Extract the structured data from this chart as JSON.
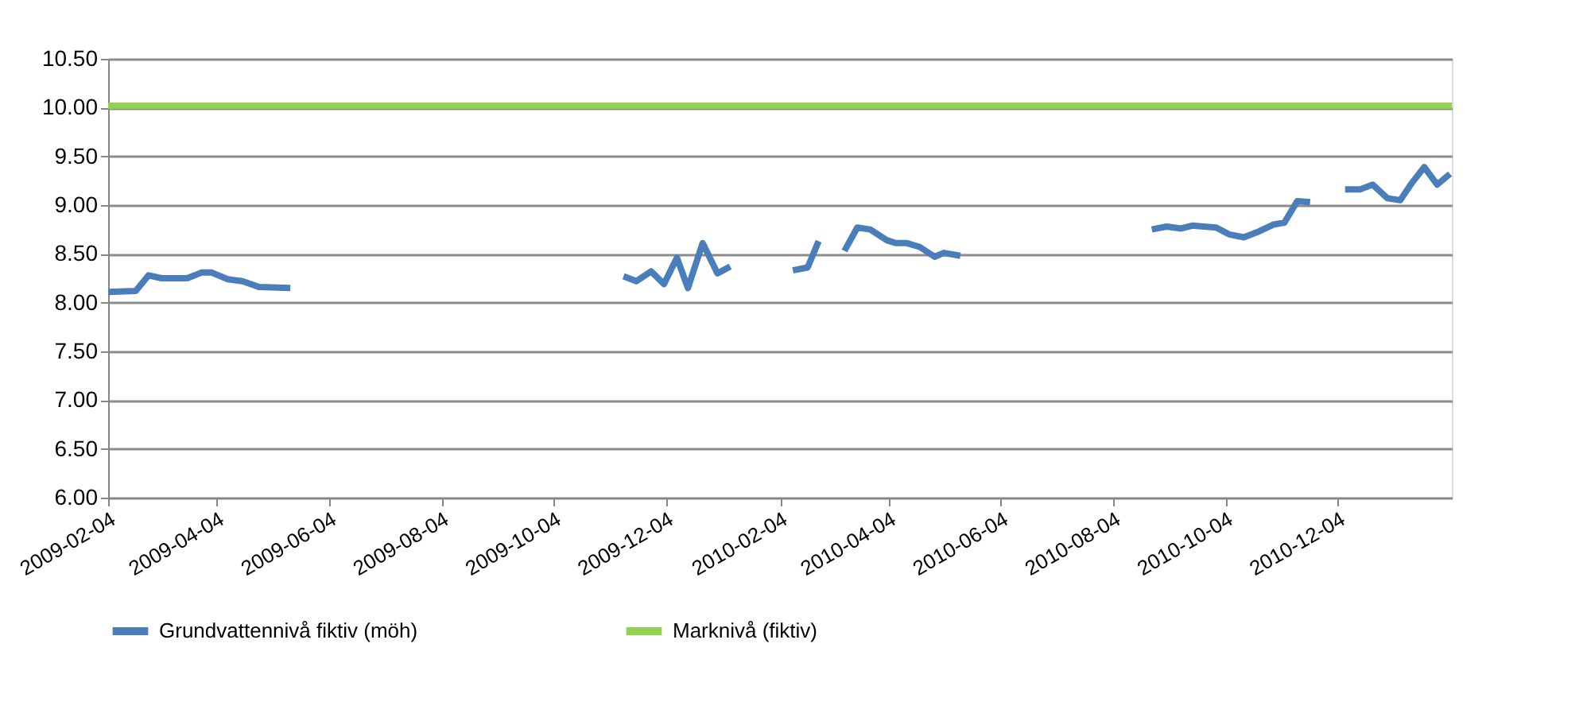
{
  "chart_data": {
    "type": "line",
    "xlim": [
      "2009-02-04",
      "2011-02-04"
    ],
    "xticks": [
      "2009-02-04",
      "2009-04-04",
      "2009-06-04",
      "2009-08-04",
      "2009-10-04",
      "2009-12-04",
      "2010-02-04",
      "2010-04-04",
      "2010-06-04",
      "2010-08-04",
      "2010-10-04",
      "2010-12-04"
    ],
    "ylim": [
      6.0,
      10.5
    ],
    "yticks": [
      {
        "value": 6.0,
        "label": "6.00"
      },
      {
        "value": 6.5,
        "label": "6.50"
      },
      {
        "value": 7.0,
        "label": "7.00"
      },
      {
        "value": 7.5,
        "label": "7.50"
      },
      {
        "value": 8.0,
        "label": "8.00"
      },
      {
        "value": 8.5,
        "label": "8.50"
      },
      {
        "value": 9.0,
        "label": "9.00"
      },
      {
        "value": 9.5,
        "label": "9.50"
      },
      {
        "value": 10.0,
        "label": "10.00"
      },
      {
        "value": 10.5,
        "label": "10.50"
      }
    ],
    "grid": "y",
    "legend": "bottom",
    "marker": "none",
    "line_style": "solid",
    "series": [
      {
        "name": "Grundvattennivå fiktiv (möh)",
        "color": "#4a7ebb",
        "x": [
          "2009-02-04",
          "2009-02-19",
          "2009-02-26",
          "2009-03-05",
          "2009-03-19",
          "2009-03-27",
          "2009-04-01",
          "2009-04-10",
          "2009-04-18",
          "2009-04-27",
          "2009-05-14",
          "2009-07-01",
          "2009-11-11",
          "2009-11-18",
          "2009-11-26",
          "2009-12-03",
          "2009-12-10",
          "2009-12-16",
          "2009-12-24",
          "2010-01-01",
          "2010-01-08",
          "2010-01-25",
          "2010-02-11",
          "2010-02-19",
          "2010-02-25",
          "2010-03-04",
          "2010-03-11",
          "2010-03-18",
          "2010-03-25",
          "2010-04-03",
          "2010-04-08",
          "2010-04-14",
          "2010-04-21",
          "2010-04-29",
          "2010-05-04",
          "2010-05-13",
          "2010-07-01",
          "2010-08-25",
          "2010-09-02",
          "2010-09-10",
          "2010-09-16",
          "2010-09-29",
          "2010-10-06",
          "2010-10-14",
          "2010-10-21",
          "2010-10-30",
          "2010-11-05",
          "2010-11-12",
          "2010-11-19",
          "2010-11-28",
          "2010-12-08",
          "2010-12-16",
          "2010-12-23",
          "2010-12-31",
          "2011-01-07",
          "2011-01-13",
          "2011-01-20",
          "2011-01-27",
          "2011-02-03"
        ],
        "values": [
          8.11,
          8.12,
          8.28,
          8.25,
          8.25,
          8.31,
          8.31,
          8.24,
          8.22,
          8.16,
          8.15,
          null,
          8.27,
          8.22,
          8.32,
          8.19,
          8.46,
          8.15,
          8.61,
          8.3,
          8.37,
          null,
          8.33,
          8.36,
          8.63,
          null,
          8.53,
          8.77,
          8.75,
          8.64,
          8.61,
          8.61,
          8.57,
          8.47,
          8.51,
          8.48,
          null,
          8.75,
          8.78,
          8.76,
          8.79,
          8.77,
          8.7,
          8.67,
          8.72,
          8.8,
          8.82,
          9.04,
          9.03,
          null,
          9.16,
          9.16,
          9.21,
          9.07,
          9.05,
          9.22,
          9.39,
          9.21,
          9.32
        ]
      },
      {
        "name": "Marknivå (fiktiv)",
        "color": "#92d050",
        "x": [
          "2009-02-04",
          "2011-02-04"
        ],
        "values": [
          10.02,
          10.02
        ]
      }
    ]
  }
}
